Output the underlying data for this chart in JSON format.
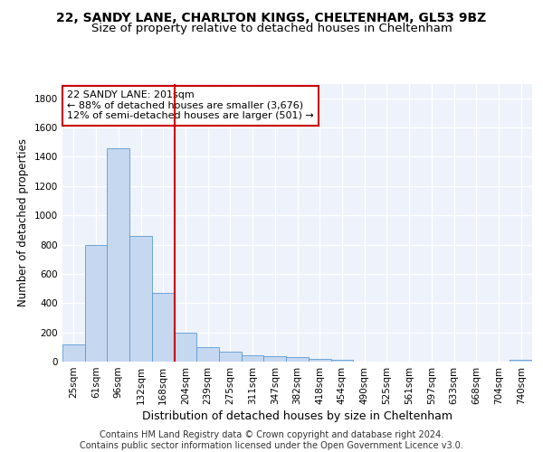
{
  "title1": "22, SANDY LANE, CHARLTON KINGS, CHELTENHAM, GL53 9BZ",
  "title2": "Size of property relative to detached houses in Cheltenham",
  "xlabel": "Distribution of detached houses by size in Cheltenham",
  "ylabel": "Number of detached properties",
  "footer1": "Contains HM Land Registry data © Crown copyright and database right 2024.",
  "footer2": "Contains public sector information licensed under the Open Government Licence v3.0.",
  "categories": [
    "25sqm",
    "61sqm",
    "96sqm",
    "132sqm",
    "168sqm",
    "204sqm",
    "239sqm",
    "275sqm",
    "311sqm",
    "347sqm",
    "382sqm",
    "418sqm",
    "454sqm",
    "490sqm",
    "525sqm",
    "561sqm",
    "597sqm",
    "633sqm",
    "668sqm",
    "704sqm",
    "740sqm"
  ],
  "values": [
    120,
    795,
    1460,
    860,
    470,
    200,
    100,
    65,
    45,
    35,
    30,
    20,
    10,
    0,
    0,
    0,
    0,
    0,
    0,
    0,
    15
  ],
  "bar_color": "#c5d8f0",
  "bar_edgecolor": "#5b9bd5",
  "vline_color": "#cc0000",
  "annotation_line1": "22 SANDY LANE: 201sqm",
  "annotation_line2": "← 88% of detached houses are smaller (3,676)",
  "annotation_line3": "12% of semi-detached houses are larger (501) →",
  "annotation_box_color": "#cc0000",
  "ylim": [
    0,
    1900
  ],
  "yticks": [
    0,
    200,
    400,
    600,
    800,
    1000,
    1200,
    1400,
    1600,
    1800
  ],
  "bg_color": "#edf2fb",
  "grid_color": "#ffffff",
  "title1_fontsize": 10,
  "title2_fontsize": 9.5,
  "ylabel_fontsize": 8.5,
  "xlabel_fontsize": 9,
  "tick_fontsize": 7.5,
  "footer_fontsize": 7,
  "annotation_fontsize": 8
}
